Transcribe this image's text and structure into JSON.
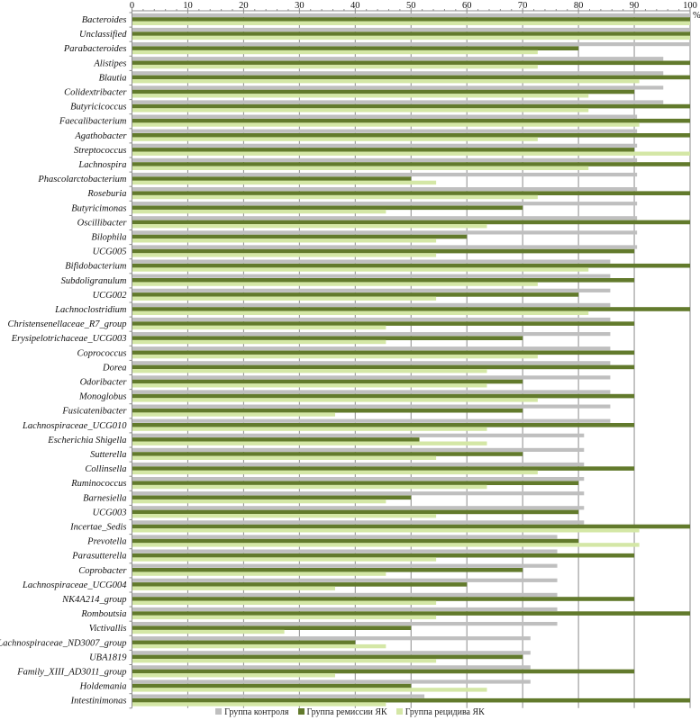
{
  "chart_data": {
    "type": "bar",
    "orientation": "horizontal",
    "title": "",
    "xlabel": "",
    "ylabel": "",
    "x_unit_label": "%",
    "xlim": [
      0,
      100
    ],
    "x_ticks": [
      "0",
      "10",
      "20",
      "30",
      "40",
      "50",
      "60",
      "70",
      "80",
      "90",
      "100"
    ],
    "grid": true,
    "legend_position": "bottom",
    "categories": [
      "Bacteroides",
      "Unclassified",
      "Parabacteroides",
      "Alistipes",
      "Blautia",
      "Colidextribacter",
      "Butyricicoccus",
      "Faecalibacterium",
      "Agathobacter",
      "Streptococcus",
      "Lachnospira",
      "Phascolarctobacterium",
      "Roseburia",
      "Butyricimonas",
      "Oscillibacter",
      "Bilophila",
      "UCG005",
      "Bifidobacterium",
      "Subdoligranulum",
      "UCG002",
      "Lachnoclostridium",
      "Christensenellaceae_R7_group",
      "Erysipelotrichaceae_UCG003",
      "Coprococcus",
      "Dorea",
      "Odoribacter",
      "Monoglobus",
      "Fusicatenibacter",
      "Lachnospiraceae_UCG010",
      "Escherichia Shigella",
      "Sutterella",
      "Collinsella",
      "Ruminococcus",
      "Barnesiella",
      "UCG003",
      "Incertae_Sedis",
      "Prevotella",
      "Parasutterella",
      "Coprobacter",
      "Lachnospiraceae_UCG004",
      "NK4A214_group",
      "Romboutsia",
      "Victivallis",
      "Lachnospiraceae_ND3007_group",
      "UBA1819",
      "Family_XIII_AD3011_group",
      "Holdemania",
      "Intestinimonas"
    ],
    "series": [
      {
        "name": "Группа контроля",
        "color": "#bfbfbf",
        "values": [
          100,
          100,
          100,
          95.2,
          95.2,
          95.2,
          95.2,
          90.5,
          90.5,
          90.5,
          90.5,
          90.5,
          90.5,
          90.5,
          90.5,
          90.5,
          90.5,
          85.7,
          85.7,
          85.7,
          85.7,
          85.7,
          85.7,
          85.7,
          85.7,
          85.7,
          85.7,
          85.7,
          85.7,
          81.0,
          81.0,
          81.0,
          81.0,
          81.0,
          81.0,
          81.0,
          76.2,
          76.2,
          76.2,
          76.2,
          76.2,
          76.2,
          76.2,
          71.4,
          71.4,
          71.4,
          71.4,
          52.4
        ]
      },
      {
        "name": "Группа ремиссии ЯК",
        "color": "#627a2c",
        "values": [
          100,
          100,
          80,
          100,
          100,
          90,
          100,
          100,
          100,
          90,
          100,
          50,
          100,
          70,
          100,
          60,
          90,
          100,
          90,
          80,
          100,
          90,
          70,
          90,
          90,
          70,
          90,
          70,
          90,
          51.5,
          70,
          90,
          80,
          50,
          80,
          100,
          80,
          90,
          70,
          60,
          90,
          100,
          50,
          40,
          70,
          90,
          50,
          100
        ]
      },
      {
        "name": "Группа рецидива ЯК",
        "color": "#d4e7a6",
        "values": [
          100,
          100,
          72.7,
          72.7,
          90.9,
          81.8,
          81.8,
          90.9,
          72.7,
          100,
          81.8,
          54.5,
          72.7,
          45.5,
          63.6,
          54.5,
          54.5,
          81.8,
          72.7,
          54.5,
          81.8,
          45.5,
          45.5,
          72.7,
          63.6,
          63.6,
          72.7,
          36.4,
          63.6,
          63.6,
          54.5,
          72.7,
          63.6,
          45.5,
          54.5,
          90.9,
          90.9,
          54.5,
          45.5,
          36.4,
          54.5,
          54.5,
          27.3,
          45.5,
          54.5,
          36.4,
          63.6,
          45.5
        ]
      }
    ]
  }
}
